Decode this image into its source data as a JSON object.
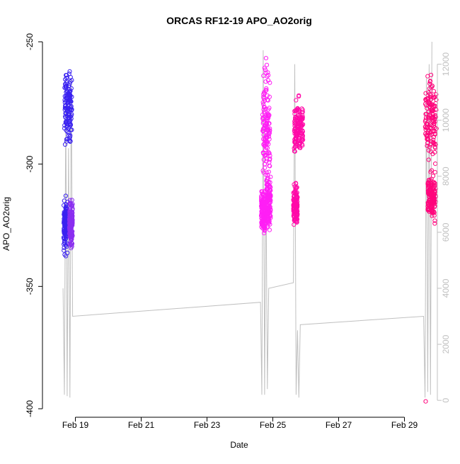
{
  "chart_data": {
    "type": "scatter",
    "title": "ORCAS RF12-19 APO_AO2orig",
    "xlabel": "Date",
    "ylabel": "APO_AO2orig",
    "x_ticks": [
      {
        "date": "2016-02-19",
        "label": "Feb 19"
      },
      {
        "date": "2016-02-21",
        "label": "Feb 21"
      },
      {
        "date": "2016-02-23",
        "label": "Feb 23"
      },
      {
        "date": "2016-02-25",
        "label": "Feb 25"
      },
      {
        "date": "2016-02-27",
        "label": "Feb 27"
      },
      {
        "date": "2016-02-29",
        "label": "Feb 29"
      }
    ],
    "xlim": [
      "2016-02-18T00:00",
      "2016-03-01T00:00"
    ],
    "ylim": [
      -400,
      -250
    ],
    "y_ticks": [
      -400,
      -350,
      -300,
      -250
    ],
    "y2_ticks": [
      0,
      2000,
      4000,
      6000,
      8000,
      10000,
      12000
    ],
    "y2_lim": [
      -300,
      12800
    ],
    "grid": false,
    "legend": "none",
    "colors": {
      "blue": "#3a22f0",
      "violet": "#8a2ef0",
      "magenta": "#ff1ff5",
      "pink": "#ff0aa8",
      "deep_pink": "#ff057c",
      "altitude_line": "#c0c0c0",
      "axis": "#000000",
      "y2_axis": "#c0c0c0"
    },
    "series": [
      {
        "clusters": [
          {
            "t0": "2016-02-18T16:00",
            "t1": "2016-02-18T21:30",
            "y_low": -297,
            "y_high": -257,
            "color": "blue"
          },
          {
            "t0": "2016-02-18T15:30",
            "t1": "2016-02-18T18:30",
            "y_low": -340,
            "y_high": -310,
            "color": "blue"
          },
          {
            "t0": "2016-02-18T19:30",
            "t1": "2016-02-18T22:00",
            "y_low": -336,
            "y_high": -312,
            "color": "violet"
          },
          {
            "t0": "2016-02-24T16:30",
            "t1": "2016-02-24T22:00",
            "y_low": -320,
            "y_high": -252,
            "color": "magenta"
          },
          {
            "t0": "2016-02-24T15:30",
            "t1": "2016-02-24T18:30",
            "y_low": -333,
            "y_high": -308,
            "color": "magenta"
          },
          {
            "t0": "2016-02-24T19:30",
            "t1": "2016-02-24T22:30",
            "y_low": -332,
            "y_high": -300,
            "color": "magenta"
          },
          {
            "t0": "2016-02-25T15:30",
            "t1": "2016-02-25T22:00",
            "y_low": -300,
            "y_high": -270,
            "color": "pink"
          },
          {
            "t0": "2016-02-25T15:00",
            "t1": "2016-02-25T18:00",
            "y_low": -328,
            "y_high": -305,
            "color": "pink"
          },
          {
            "t0": "2016-02-29T15:00",
            "t1": "2016-02-29T23:30",
            "y_low": -307,
            "y_high": -257,
            "color": "deep_pink"
          },
          {
            "t0": "2016-02-29T17:00",
            "t1": "2016-02-29T23:00",
            "y_low": -326,
            "y_high": -300,
            "color": "deep_pink"
          }
        ],
        "outliers": [
          {
            "date": "2016-02-29T15:30",
            "y": -397,
            "color": "deep_pink"
          }
        ]
      },
      {
        "axis": "right",
        "points": [
          {
            "date": "2016-02-18T15:00",
            "y": 4000
          },
          {
            "date": "2016-02-18T16:00",
            "y": 200
          },
          {
            "date": "2016-02-18T17:00",
            "y": 10500
          },
          {
            "date": "2016-02-18T18:00",
            "y": 150
          },
          {
            "date": "2016-02-18T19:00",
            "y": 9000
          },
          {
            "date": "2016-02-18T20:00",
            "y": 100
          },
          {
            "date": "2016-02-18T21:00",
            "y": 11500
          },
          {
            "date": "2016-02-18T22:00",
            "y": 3000
          },
          {
            "date": "2016-02-24T15:00",
            "y": 3500
          },
          {
            "date": "2016-02-24T16:00",
            "y": 200
          },
          {
            "date": "2016-02-24T17:00",
            "y": 12500
          },
          {
            "date": "2016-02-24T18:00",
            "y": 200
          },
          {
            "date": "2016-02-24T19:00",
            "y": 8000
          },
          {
            "date": "2016-02-24T20:00",
            "y": 400
          },
          {
            "date": "2016-02-24T21:00",
            "y": 4000
          },
          {
            "date": "2016-02-25T15:00",
            "y": 4200
          },
          {
            "date": "2016-02-25T16:00",
            "y": 12000
          },
          {
            "date": "2016-02-25T17:00",
            "y": 200
          },
          {
            "date": "2016-02-25T18:00",
            "y": 2500
          },
          {
            "date": "2016-02-25T19:00",
            "y": 100
          },
          {
            "date": "2016-02-25T20:00",
            "y": 2700
          },
          {
            "date": "2016-02-29T14:00",
            "y": 3000
          },
          {
            "date": "2016-02-29T15:00",
            "y": 100
          },
          {
            "date": "2016-02-29T16:00",
            "y": 11500
          },
          {
            "date": "2016-02-29T17:00",
            "y": 300
          },
          {
            "date": "2016-02-29T18:00",
            "y": 12000
          },
          {
            "date": "2016-02-29T19:00",
            "y": 200
          },
          {
            "date": "2016-02-29T20:00",
            "y": 12800
          }
        ]
      }
    ]
  }
}
